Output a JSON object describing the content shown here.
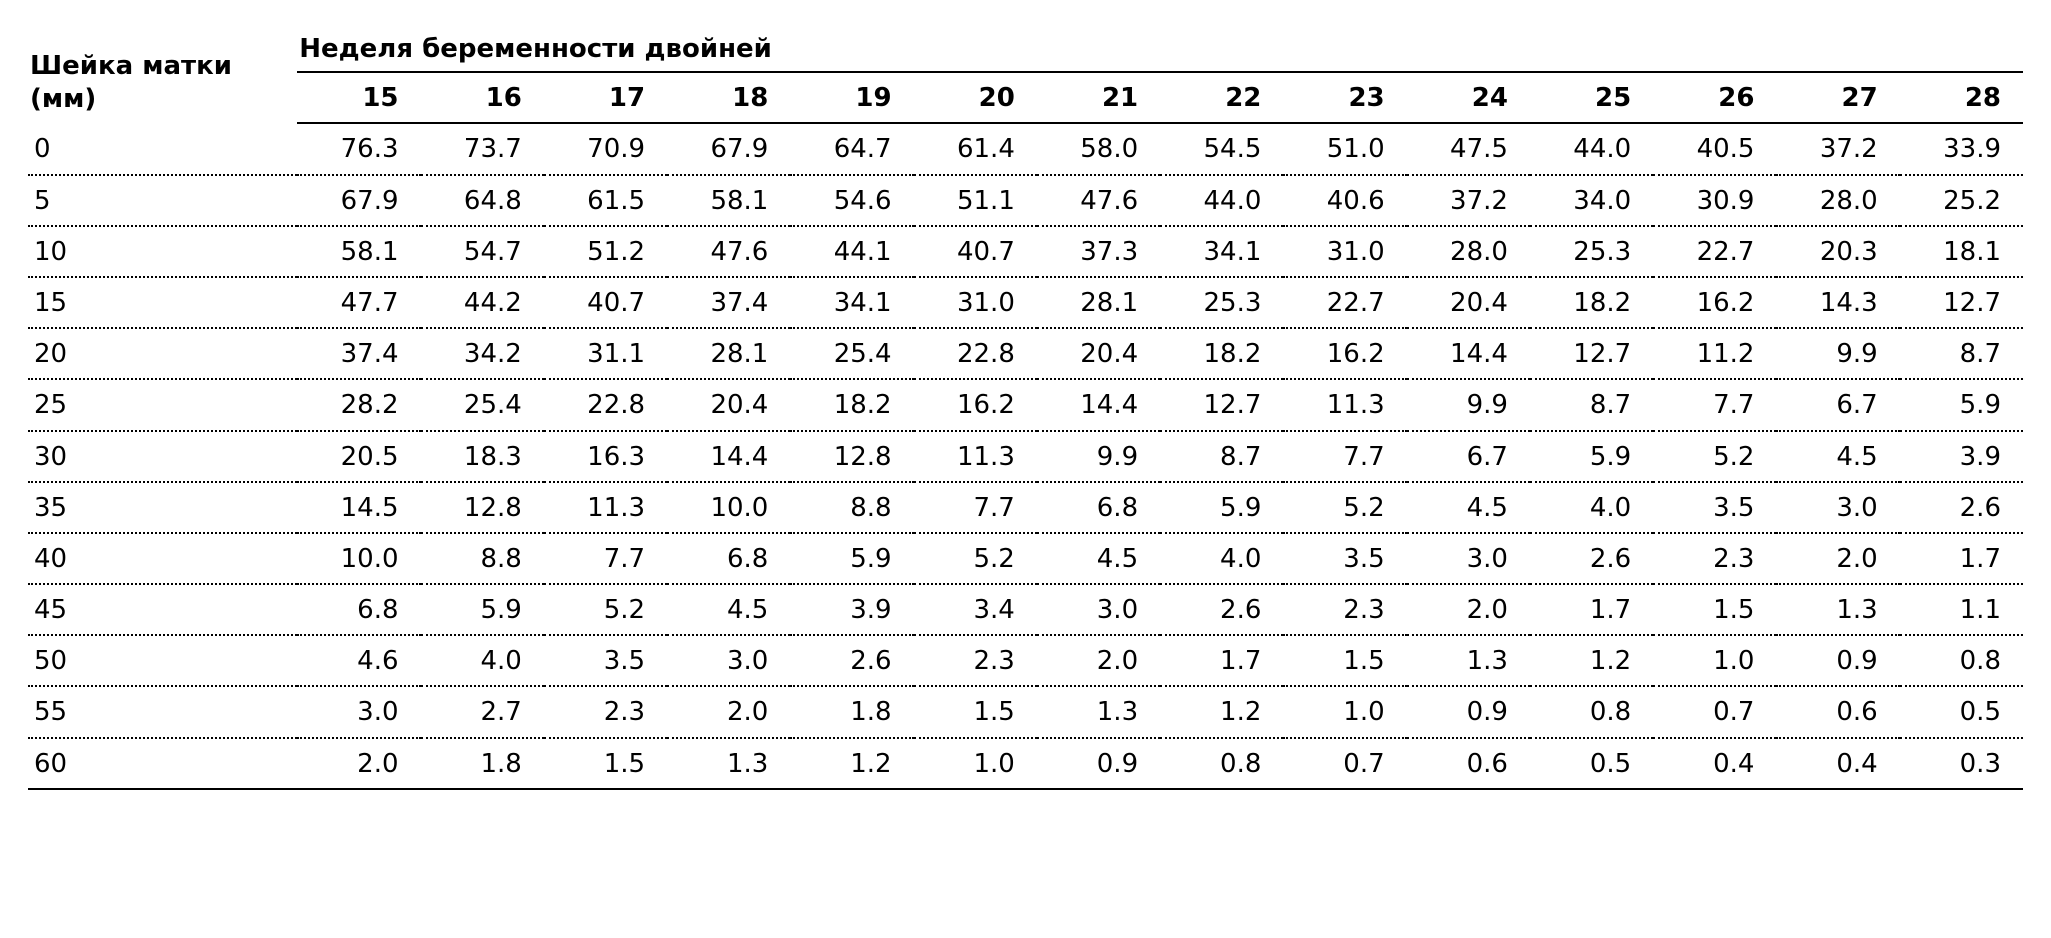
{
  "table": {
    "type": "table",
    "background_color": "#ffffff",
    "text_color": "#000000",
    "font_family": "Verdana, sans-serif",
    "header_fontsize_pt": 20,
    "body_fontsize_pt": 20,
    "row_header_label_line1": "Шейка матки",
    "row_header_label_line2": "(мм)",
    "group_header": "Неделя беременности двойней",
    "columns": [
      "15",
      "16",
      "17",
      "18",
      "19",
      "20",
      "21",
      "22",
      "23",
      "24",
      "25",
      "26",
      "27",
      "28"
    ],
    "row_labels": [
      "0",
      "5",
      "10",
      "15",
      "20",
      "25",
      "30",
      "35",
      "40",
      "45",
      "50",
      "55",
      "60"
    ],
    "rows": [
      [
        "76.3",
        "73.7",
        "70.9",
        "67.9",
        "64.7",
        "61.4",
        "58.0",
        "54.5",
        "51.0",
        "47.5",
        "44.0",
        "40.5",
        "37.2",
        "33.9"
      ],
      [
        "67.9",
        "64.8",
        "61.5",
        "58.1",
        "54.6",
        "51.1",
        "47.6",
        "44.0",
        "40.6",
        "37.2",
        "34.0",
        "30.9",
        "28.0",
        "25.2"
      ],
      [
        "58.1",
        "54.7",
        "51.2",
        "47.6",
        "44.1",
        "40.7",
        "37.3",
        "34.1",
        "31.0",
        "28.0",
        "25.3",
        "22.7",
        "20.3",
        "18.1"
      ],
      [
        "47.7",
        "44.2",
        "40.7",
        "37.4",
        "34.1",
        "31.0",
        "28.1",
        "25.3",
        "22.7",
        "20.4",
        "18.2",
        "16.2",
        "14.3",
        "12.7"
      ],
      [
        "37.4",
        "34.2",
        "31.1",
        "28.1",
        "25.4",
        "22.8",
        "20.4",
        "18.2",
        "16.2",
        "14.4",
        "12.7",
        "11.2",
        "9.9",
        "8.7"
      ],
      [
        "28.2",
        "25.4",
        "22.8",
        "20.4",
        "18.2",
        "16.2",
        "14.4",
        "12.7",
        "11.3",
        "9.9",
        "8.7",
        "7.7",
        "6.7",
        "5.9"
      ],
      [
        "20.5",
        "18.3",
        "16.3",
        "14.4",
        "12.8",
        "11.3",
        "9.9",
        "8.7",
        "7.7",
        "6.7",
        "5.9",
        "5.2",
        "4.5",
        "3.9"
      ],
      [
        "14.5",
        "12.8",
        "11.3",
        "10.0",
        "8.8",
        "7.7",
        "6.8",
        "5.9",
        "5.2",
        "4.5",
        "4.0",
        "3.5",
        "3.0",
        "2.6"
      ],
      [
        "10.0",
        "8.8",
        "7.7",
        "6.8",
        "5.9",
        "5.2",
        "4.5",
        "4.0",
        "3.5",
        "3.0",
        "2.6",
        "2.3",
        "2.0",
        "1.7"
      ],
      [
        "6.8",
        "5.9",
        "5.2",
        "4.5",
        "3.9",
        "3.4",
        "3.0",
        "2.6",
        "2.3",
        "2.0",
        "1.7",
        "1.5",
        "1.3",
        "1.1"
      ],
      [
        "4.6",
        "4.0",
        "3.5",
        "3.0",
        "2.6",
        "2.3",
        "2.0",
        "1.7",
        "1.5",
        "1.3",
        "1.2",
        "1.0",
        "0.9",
        "0.8"
      ],
      [
        "3.0",
        "2.7",
        "2.3",
        "2.0",
        "1.8",
        "1.5",
        "1.3",
        "1.2",
        "1.0",
        "0.9",
        "0.8",
        "0.7",
        "0.6",
        "0.5"
      ],
      [
        "2.0",
        "1.8",
        "1.5",
        "1.3",
        "1.2",
        "1.0",
        "0.9",
        "0.8",
        "0.7",
        "0.6",
        "0.5",
        "0.4",
        "0.4",
        "0.3"
      ]
    ],
    "column_widths_pct": {
      "row_header": 13.5,
      "data": 6.18
    },
    "borders": {
      "header_rule": "2px solid #000000",
      "body_rule": "2px dotted #000000",
      "bottom_rule": "2px solid #000000"
    }
  }
}
